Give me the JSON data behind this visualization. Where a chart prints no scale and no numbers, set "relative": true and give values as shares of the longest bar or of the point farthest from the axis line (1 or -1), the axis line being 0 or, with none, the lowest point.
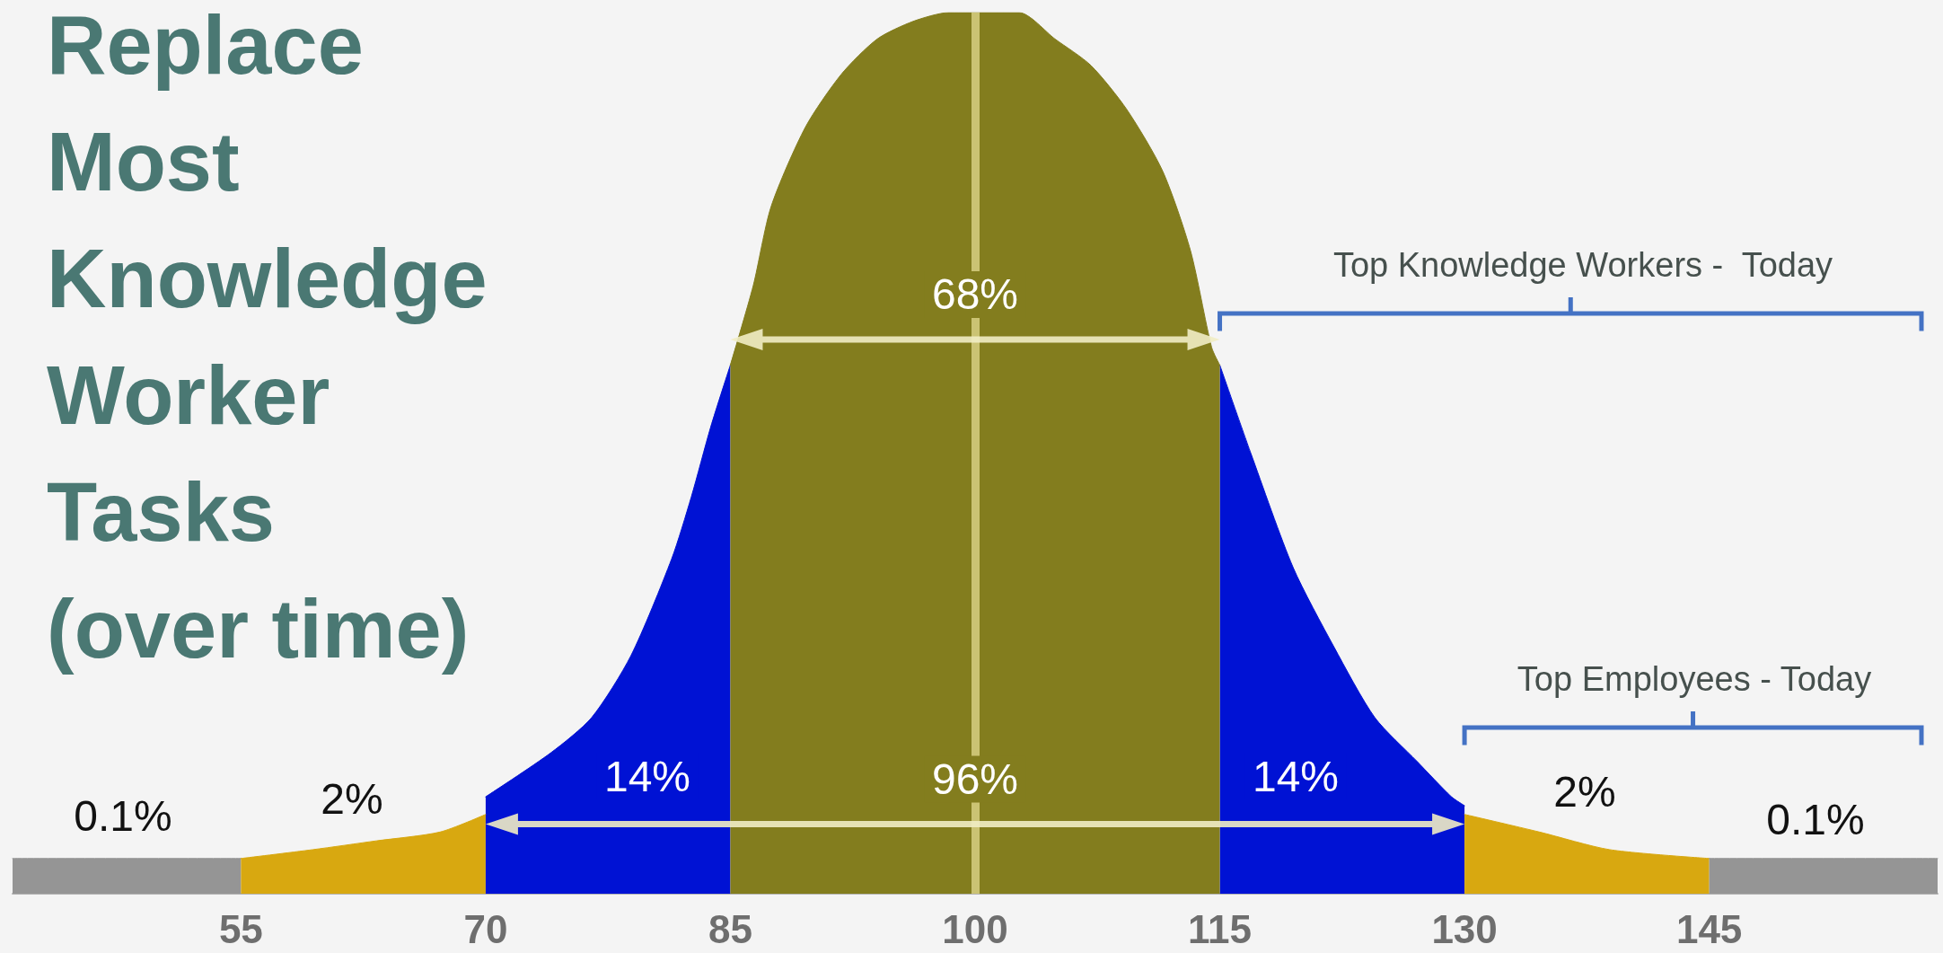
{
  "chart_data": {
    "type": "area",
    "title": "Replace Most Knowledge Worker Tasks (over time)",
    "relative": true,
    "xlim": [
      41,
      159
    ],
    "xticks": [
      55,
      70,
      85,
      100,
      115,
      130,
      145
    ],
    "series": [
      {
        "color": "#959595",
        "x": [
          41,
          55
        ],
        "values": [
          0.04,
          0.04
        ]
      },
      {
        "color": "#d8a810",
        "x": [
          55,
          59.4,
          63.3,
          67.2,
          70
        ],
        "values": [
          0.04,
          0.05,
          0.06,
          0.07,
          0.09
        ]
      },
      {
        "color": "#0012d4",
        "x": [
          70,
          74,
          76.5,
          78.9,
          81.4,
          82.6,
          83.8,
          85
        ],
        "values": [
          0.11,
          0.16,
          0.2,
          0.27,
          0.38,
          0.45,
          0.53,
          0.6
        ]
      },
      {
        "color": "#837d1e",
        "x": [
          85,
          86.4,
          87.5,
          89.6,
          91.8,
          94,
          96.2,
          98.4,
          100,
          102.7,
          104.9,
          107.1,
          109.3,
          111.5,
          113.2,
          114.5,
          115
        ],
        "values": [
          0.6,
          0.69,
          0.78,
          0.87,
          0.93,
          0.97,
          0.99,
          1,
          1,
          1,
          0.97,
          0.94,
          0.89,
          0.82,
          0.73,
          0.62,
          0.6
        ]
      },
      {
        "color": "#0012d4",
        "x": [
          115,
          116.9,
          119.5,
          122,
          124.5,
          127.1,
          129.2,
          130
        ],
        "values": [
          0.6,
          0.5,
          0.37,
          0.28,
          0.2,
          0.15,
          0.11,
          0.1
        ]
      },
      {
        "color": "#d8a810",
        "x": [
          130,
          134.6,
          138.9,
          145
        ],
        "values": [
          0.09,
          0.07,
          0.05,
          0.04
        ]
      },
      {
        "color": "#959595",
        "x": [
          145,
          159
        ],
        "values": [
          0.04,
          0.04
        ]
      }
    ],
    "ref_lines": [
      {
        "axis": "x",
        "value": 100,
        "color": "#cbc373"
      }
    ],
    "annotations": [
      "0.1%",
      "2%",
      "14%",
      {
        "text": "68%",
        "x": 100,
        "y": 0.68
      },
      {
        "text": "96%",
        "x": 100,
        "y": 0.13
      },
      "14%",
      "2%",
      "0.1%",
      "Top Knowledge Workers -  Today",
      "Top Employees - Today"
    ]
  }
}
